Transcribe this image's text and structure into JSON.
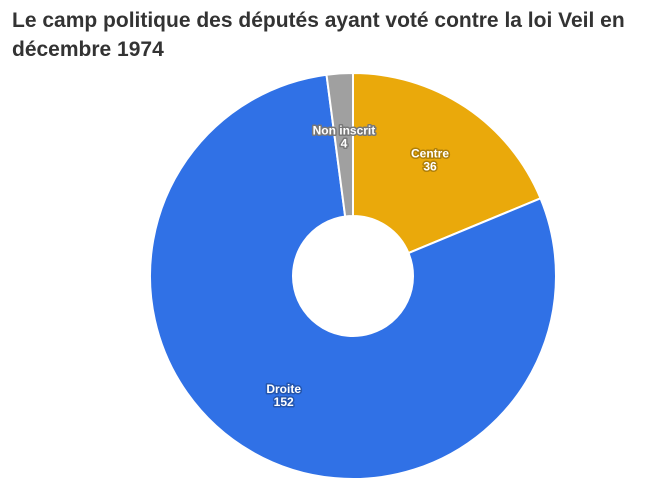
{
  "chart_data": {
    "type": "pie",
    "title": "Le camp politique des députés ayant voté contre la loi Veil en décembre 1974",
    "donut": true,
    "slices": [
      {
        "label": "Centre",
        "value": 36,
        "color": "#eaa90b"
      },
      {
        "label": "Droite",
        "value": 152,
        "color": "#3071e6"
      },
      {
        "label": "Non inscrit",
        "value": 4,
        "color": "#a0a0a0"
      }
    ]
  }
}
